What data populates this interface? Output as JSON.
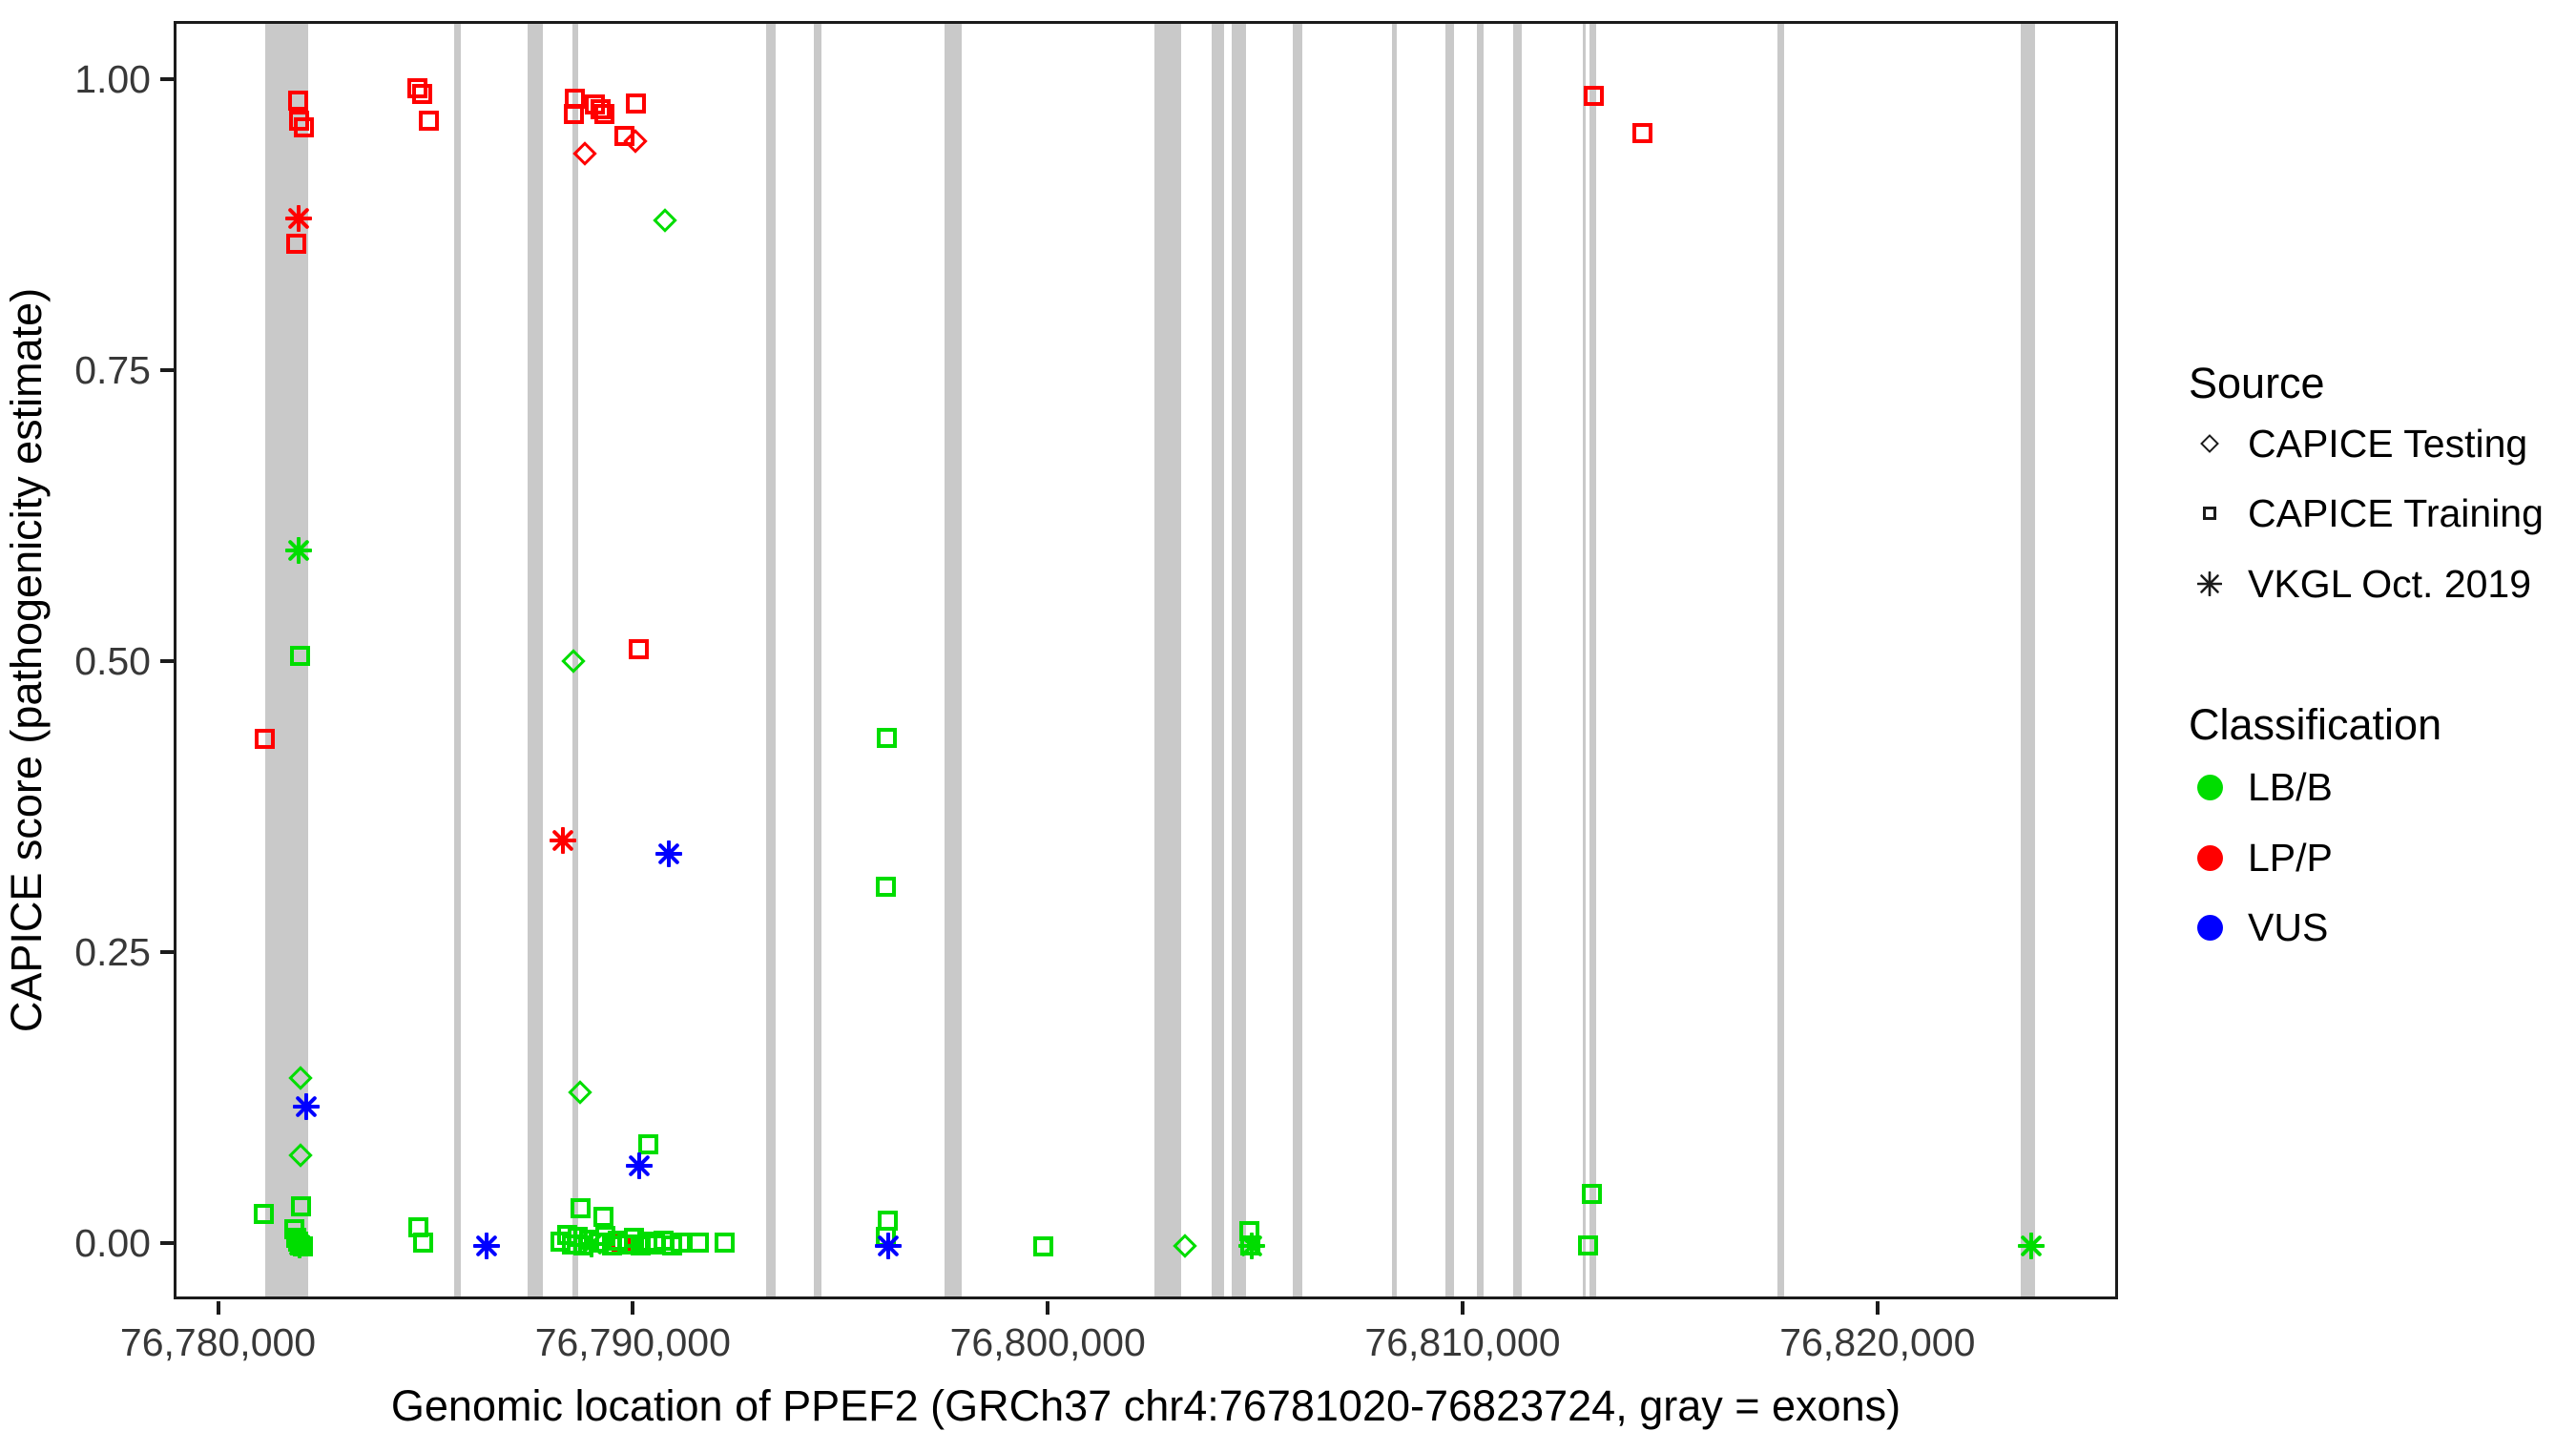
{
  "figure": {
    "x_axis_title": "Genomic location of PPEF2 (GRCh37 chr4:76781020-76823724, gray = exons)",
    "y_axis_title": "CAPICE score (pathogenicity estimate)"
  },
  "legend": {
    "source": {
      "title": "Source",
      "items": [
        {
          "label": "CAPICE Testing",
          "glyph": "diamond-outline-icon"
        },
        {
          "label": "CAPICE Training",
          "glyph": "square-outline-icon"
        },
        {
          "label": "VKGL Oct. 2019",
          "glyph": "asterisk-icon"
        }
      ]
    },
    "classification": {
      "title": "Classification",
      "items": [
        {
          "label": "LB/B",
          "color": "#00dd00",
          "glyph": "green-dot-icon"
        },
        {
          "label": "LP/P",
          "color": "#ff0000",
          "glyph": "red-dot-icon"
        },
        {
          "label": "VUS",
          "color": "#0000ff",
          "glyph": "blue-dot-icon"
        }
      ]
    }
  },
  "chart_data": {
    "type": "scatter",
    "title": "",
    "xlabel": "Genomic location of PPEF2 (GRCh37 chr4:76781020-76823724, gray = exons)",
    "ylabel": "CAPICE score (pathogenicity estimate)",
    "xlim": [
      76778930,
      76825800
    ],
    "ylim": [
      -0.048,
      1.05
    ],
    "grid": false,
    "legend_position": "right",
    "colors": {
      "lbb": "#00dd00",
      "lpp": "#ff0000",
      "vus": "#0000ff",
      "exon_gray": "#c9c9c9"
    },
    "x_ticks": [
      {
        "bp": 76780000,
        "label": "76,780,000"
      },
      {
        "bp": 76790000,
        "label": "76,790,000"
      },
      {
        "bp": 76800000,
        "label": "76,800,000"
      },
      {
        "bp": 76810000,
        "label": "76,810,000"
      },
      {
        "bp": 76820000,
        "label": "76,820,000"
      }
    ],
    "y_ticks": [
      {
        "v": 0.0,
        "label": "0.00"
      },
      {
        "v": 0.25,
        "label": "0.25"
      },
      {
        "v": 0.5,
        "label": "0.50"
      },
      {
        "v": 0.75,
        "label": "0.75"
      },
      {
        "v": 1.0,
        "label": "1.00"
      }
    ],
    "exons_bp": [
      [
        76781067,
        76782102
      ],
      [
        76785621,
        76785782
      ],
      [
        76787392,
        76787760
      ],
      [
        76788473,
        76788611
      ],
      [
        76793142,
        76793372
      ],
      [
        76794292,
        76794476
      ],
      [
        76797443,
        76797857
      ],
      [
        76802503,
        76803147
      ],
      [
        76803883,
        76804182
      ],
      [
        76804366,
        76804711
      ],
      [
        76805838,
        76806068
      ],
      [
        76808230,
        76808345
      ],
      [
        76809518,
        76809725
      ],
      [
        76810277,
        76810438
      ],
      [
        76811151,
        76811358
      ],
      [
        76812830,
        76812899
      ],
      [
        76812991,
        76813152
      ],
      [
        76817522,
        76817683
      ],
      [
        76823380,
        76823730
      ]
    ],
    "point_encoding": "each point = [position_bp, capice_score, source(T=CAPICE Training/square, D=CAPICE Testing/diamond, V=VKGL Oct. 2019/asterisk), classification(B=LB/B green, P=LP/P red, U=VUS blue)]",
    "points": [
      [
        76781850,
        0.984,
        "T",
        "P"
      ],
      [
        76781895,
        0.967,
        "T",
        "P"
      ],
      [
        76781990,
        0.961,
        "T",
        "P"
      ],
      [
        76781872,
        0.883,
        "V",
        "P"
      ],
      [
        76781826,
        0.861,
        "T",
        "P"
      ],
      [
        76781067,
        0.436,
        "T",
        "P"
      ],
      [
        76784747,
        0.995,
        "T",
        "P"
      ],
      [
        76784862,
        0.99,
        "T",
        "P"
      ],
      [
        76785023,
        0.967,
        "T",
        "P"
      ],
      [
        76788542,
        0.986,
        "T",
        "P"
      ],
      [
        76789002,
        0.981,
        "T",
        "P"
      ],
      [
        76789140,
        0.977,
        "T",
        "P"
      ],
      [
        76788519,
        0.973,
        "T",
        "P"
      ],
      [
        76789232,
        0.973,
        "T",
        "P"
      ],
      [
        76789991,
        0.982,
        "T",
        "P"
      ],
      [
        76789715,
        0.954,
        "T",
        "P"
      ],
      [
        76789991,
        0.949,
        "D",
        "P"
      ],
      [
        76788772,
        0.939,
        "D",
        "P"
      ],
      [
        76788243,
        0.349,
        "V",
        "P"
      ],
      [
        76790060,
        0.513,
        "T",
        "P"
      ],
      [
        76789646,
        0.002,
        "T",
        "P"
      ],
      [
        76813082,
        0.988,
        "T",
        "P"
      ],
      [
        76814255,
        0.956,
        "T",
        "P"
      ],
      [
        76790703,
        0.881,
        "D",
        "B"
      ],
      [
        76781872,
        0.598,
        "V",
        "B"
      ],
      [
        76781918,
        0.507,
        "T",
        "B"
      ],
      [
        76788496,
        0.503,
        "D",
        "B"
      ],
      [
        76781918,
        0.145,
        "D",
        "B"
      ],
      [
        76781918,
        0.078,
        "D",
        "B"
      ],
      [
        76781941,
        0.034,
        "T",
        "B"
      ],
      [
        76781044,
        0.028,
        "T",
        "B"
      ],
      [
        76781780,
        0.015,
        "T",
        "B"
      ],
      [
        76781826,
        0.007,
        "T",
        "B"
      ],
      [
        76781872,
        0.004,
        "T",
        "B"
      ],
      [
        76781918,
        0.001,
        "T",
        "B"
      ],
      [
        76781987,
        0.0,
        "T",
        "B"
      ],
      [
        76781895,
        0.001,
        "V",
        "B"
      ],
      [
        76784770,
        0.016,
        "T",
        "B"
      ],
      [
        76784885,
        0.003,
        "T",
        "B"
      ],
      [
        76788657,
        0.132,
        "D",
        "B"
      ],
      [
        76790290,
        0.088,
        "T",
        "B"
      ],
      [
        76788680,
        0.033,
        "T",
        "B"
      ],
      [
        76789209,
        0.025,
        "T",
        "B"
      ],
      [
        76788197,
        0.004,
        "T",
        "B"
      ],
      [
        76788358,
        0.01,
        "T",
        "B"
      ],
      [
        76788473,
        0.002,
        "T",
        "B"
      ],
      [
        76788611,
        0.008,
        "T",
        "B"
      ],
      [
        76788749,
        0.001,
        "T",
        "B"
      ],
      [
        76788887,
        0.006,
        "T",
        "B"
      ],
      [
        76788933,
        0.002,
        "V",
        "B"
      ],
      [
        76789094,
        0.003,
        "T",
        "B"
      ],
      [
        76789255,
        0.009,
        "T",
        "B"
      ],
      [
        76789416,
        0.001,
        "T",
        "B"
      ],
      [
        76789554,
        0.005,
        "T",
        "B"
      ],
      [
        76789784,
        0.002,
        "T",
        "B"
      ],
      [
        76789945,
        0.007,
        "T",
        "B"
      ],
      [
        76790106,
        0.001,
        "T",
        "B"
      ],
      [
        76790267,
        0.004,
        "T",
        "B"
      ],
      [
        76790451,
        0.002,
        "T",
        "B"
      ],
      [
        76790658,
        0.005,
        "T",
        "B"
      ],
      [
        76790865,
        0.001,
        "T",
        "B"
      ],
      [
        76791072,
        0.003,
        "T",
        "B"
      ],
      [
        76791509,
        0.003,
        "T",
        "B"
      ],
      [
        76792130,
        0.003,
        "T",
        "B"
      ],
      [
        76796040,
        0.437,
        "T",
        "B"
      ],
      [
        76796017,
        0.309,
        "T",
        "B"
      ],
      [
        76796063,
        0.022,
        "T",
        "B"
      ],
      [
        76796017,
        0.008,
        "T",
        "B"
      ],
      [
        76799834,
        0.0,
        "T",
        "B"
      ],
      [
        76803238,
        0.0,
        "D",
        "B"
      ],
      [
        76804779,
        0.013,
        "T",
        "B"
      ],
      [
        76804802,
        0.001,
        "T",
        "B"
      ],
      [
        76804848,
        0.0,
        "V",
        "B"
      ],
      [
        76813036,
        0.045,
        "T",
        "B"
      ],
      [
        76812944,
        0.001,
        "T",
        "B"
      ],
      [
        76823637,
        0.0,
        "V",
        "B"
      ],
      [
        76782056,
        0.12,
        "V",
        "U"
      ],
      [
        76786403,
        0.0,
        "V",
        "U"
      ],
      [
        76790796,
        0.337,
        "V",
        "U"
      ],
      [
        76790083,
        0.069,
        "V",
        "U"
      ],
      [
        76796086,
        0.0,
        "V",
        "U"
      ]
    ]
  }
}
